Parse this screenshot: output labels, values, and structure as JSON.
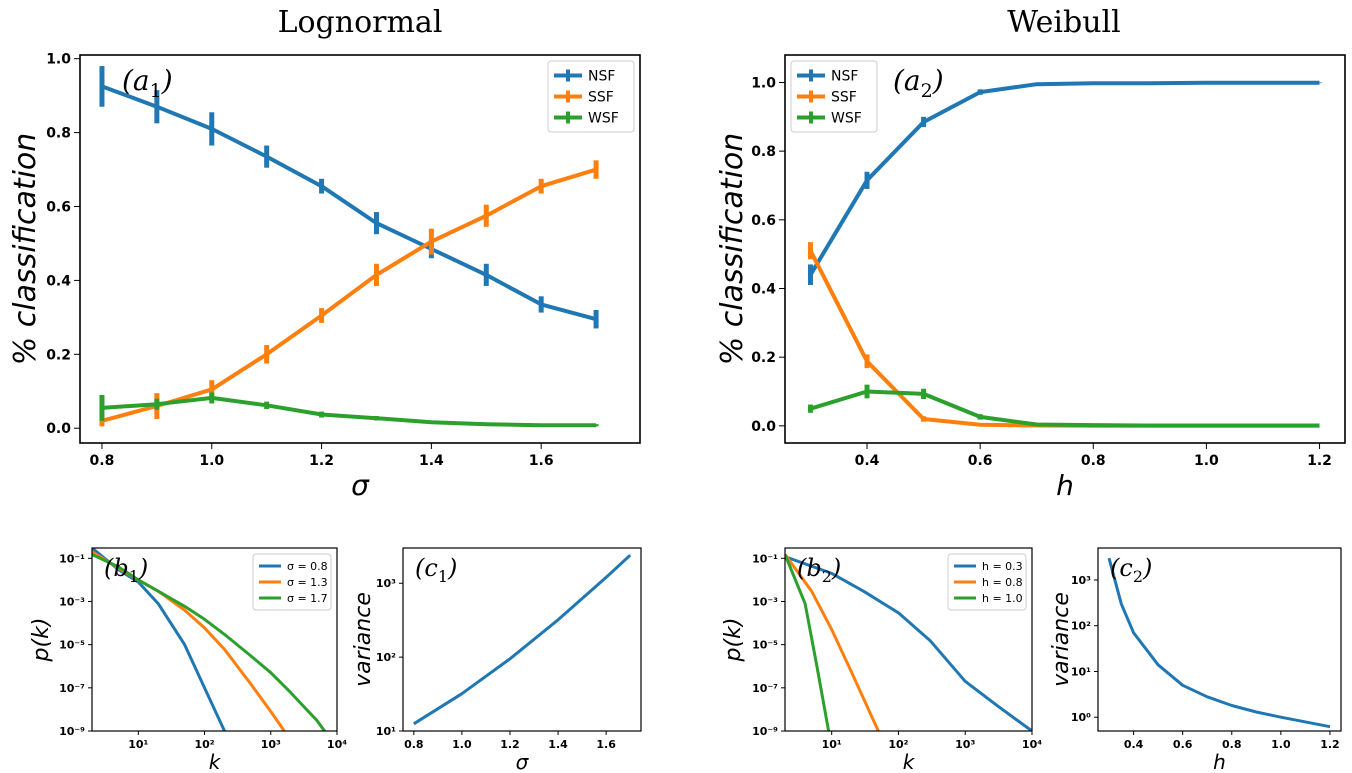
{
  "colors": {
    "blue": "#1f77b4",
    "orange": "#ff7f0e",
    "green": "#2ca02c"
  },
  "titles": {
    "left": "Lognormal",
    "right": "Weibull"
  },
  "chart_data": [
    {
      "id": "a1",
      "type": "line",
      "panel_label": "(a1)",
      "xlabel": "σ",
      "ylabel": "% classification",
      "xlim": [
        0.76,
        1.78
      ],
      "ylim": [
        -0.04,
        1.01
      ],
      "xticks": [
        0.8,
        1.0,
        1.2,
        1.4,
        1.6
      ],
      "yticks": [
        0.0,
        0.2,
        0.4,
        0.6,
        0.8,
        1.0
      ],
      "legend": "top-right",
      "x": [
        0.8,
        0.9,
        1.0,
        1.1,
        1.2,
        1.3,
        1.4,
        1.5,
        1.6,
        1.7
      ],
      "series": [
        {
          "name": "NSF",
          "color": "blue",
          "values": [
            0.925,
            0.87,
            0.81,
            0.735,
            0.655,
            0.555,
            0.485,
            0.415,
            0.335,
            0.295
          ],
          "err": [
            0.055,
            0.045,
            0.045,
            0.03,
            0.02,
            0.03,
            0.025,
            0.03,
            0.022,
            0.025
          ]
        },
        {
          "name": "SSF",
          "color": "orange",
          "values": [
            0.02,
            0.06,
            0.105,
            0.2,
            0.305,
            0.415,
            0.505,
            0.575,
            0.655,
            0.7
          ],
          "err": [
            0.015,
            0.035,
            0.025,
            0.025,
            0.02,
            0.03,
            0.035,
            0.03,
            0.02,
            0.025
          ]
        },
        {
          "name": "WSF",
          "color": "green",
          "values": [
            0.055,
            0.065,
            0.082,
            0.062,
            0.037,
            0.027,
            0.016,
            0.011,
            0.008,
            0.008
          ],
          "err": [
            0.035,
            0.015,
            0.015,
            0.01,
            0.008,
            0.006,
            0.004,
            0.004,
            0.003,
            0.003
          ]
        }
      ]
    },
    {
      "id": "a2",
      "type": "line",
      "panel_label": "(a2)",
      "xlabel": "h",
      "ylabel": "% classification",
      "xlim": [
        0.255,
        1.245
      ],
      "ylim": [
        -0.05,
        1.08
      ],
      "xticks": [
        0.4,
        0.6,
        0.8,
        1.0,
        1.2
      ],
      "yticks": [
        0.0,
        0.2,
        0.4,
        0.6,
        0.8,
        1.0
      ],
      "legend": "top-left",
      "x": [
        0.3,
        0.4,
        0.5,
        0.6,
        0.7,
        0.8,
        0.9,
        1.0,
        1.1,
        1.2
      ],
      "series": [
        {
          "name": "NSF",
          "color": "blue",
          "values": [
            0.44,
            0.715,
            0.885,
            0.972,
            0.995,
            0.998,
            0.998,
            0.999,
            0.999,
            0.999
          ],
          "err": [
            0.03,
            0.025,
            0.015,
            0.008,
            0.003,
            0.002,
            0.002,
            0.001,
            0.001,
            0.001
          ]
        },
        {
          "name": "SSF",
          "color": "orange",
          "values": [
            0.51,
            0.188,
            0.02,
            0.003,
            0.001,
            0.0,
            0.0,
            0.0,
            0.0,
            0.0
          ],
          "err": [
            0.025,
            0.02,
            0.008,
            0.002,
            0.001,
            0.0,
            0.0,
            0.0,
            0.0,
            0.0
          ]
        },
        {
          "name": "WSF",
          "color": "green",
          "values": [
            0.05,
            0.1,
            0.093,
            0.026,
            0.004,
            0.002,
            0.001,
            0.001,
            0.001,
            0.001
          ],
          "err": [
            0.012,
            0.02,
            0.015,
            0.008,
            0.003,
            0.001,
            0.0,
            0.0,
            0.0,
            0.0
          ]
        }
      ]
    },
    {
      "id": "b1",
      "type": "line",
      "panel_label": "(b1)",
      "xlabel": "k",
      "ylabel": "p(k)",
      "xscale": "log",
      "yscale": "log",
      "xlim": [
        2,
        10000
      ],
      "ylim": [
        1e-09,
        0.3
      ],
      "xticks": [
        10,
        100,
        1000,
        10000
      ],
      "xticklabels": [
        "10¹",
        "10²",
        "10³",
        "10⁴"
      ],
      "yticks": [
        1e-09,
        1e-07,
        1e-05,
        0.001,
        0.1
      ],
      "yticklabels": [
        "10⁻⁹",
        "10⁻⁷",
        "10⁻⁵",
        "10⁻³",
        "10⁻¹"
      ],
      "legend": "top-right",
      "series": [
        {
          "name": "σ = 0.8",
          "color": "blue",
          "x": [
            2,
            5,
            10,
            20,
            50,
            100,
            200
          ],
          "values": [
            0.3,
            0.03,
            0.008,
            0.0008,
            1e-05,
            1e-07,
            1e-09
          ]
        },
        {
          "name": "σ = 1.3",
          "color": "orange",
          "x": [
            2,
            5,
            10,
            20,
            50,
            100,
            200,
            500,
            1000,
            1600
          ],
          "values": [
            0.2,
            0.035,
            0.01,
            0.003,
            0.0004,
            6e-05,
            6e-06,
            1.5e-07,
            8e-09,
            1e-09
          ]
        },
        {
          "name": "σ = 1.7",
          "color": "green",
          "x": [
            2,
            5,
            10,
            20,
            50,
            100,
            200,
            500,
            1000,
            2000,
            5000,
            6500
          ],
          "values": [
            0.15,
            0.04,
            0.01,
            0.003,
            0.0006,
            0.00015,
            3e-05,
            3e-06,
            5e-07,
            6e-08,
            3e-09,
            1e-09
          ]
        }
      ]
    },
    {
      "id": "c1",
      "type": "line",
      "panel_label": "(c1)",
      "xlabel": "σ",
      "ylabel": "variance",
      "yscale": "log",
      "xlim": [
        0.755,
        1.745
      ],
      "ylim": [
        10,
        3000
      ],
      "xticks": [
        0.8,
        1.0,
        1.2,
        1.4,
        1.6
      ],
      "yticks": [
        10,
        100,
        1000
      ],
      "yticklabels": [
        "10¹",
        "10²",
        "10³"
      ],
      "series": [
        {
          "name": "",
          "color": "blue",
          "x": [
            0.8,
            1.0,
            1.2,
            1.4,
            1.6,
            1.7
          ],
          "values": [
            12.5,
            32,
            95,
            320,
            1200,
            2400
          ]
        }
      ]
    },
    {
      "id": "b2",
      "type": "line",
      "panel_label": "(b2)",
      "xlabel": "k",
      "ylabel": "p(k)",
      "xscale": "log",
      "yscale": "log",
      "xlim": [
        2,
        10000
      ],
      "ylim": [
        1e-09,
        0.3
      ],
      "xticks": [
        10,
        100,
        1000,
        10000
      ],
      "xticklabels": [
        "10¹",
        "10²",
        "10³",
        "10⁴"
      ],
      "yticks": [
        1e-09,
        1e-07,
        1e-05,
        0.001,
        0.1
      ],
      "yticklabels": [
        "10⁻⁹",
        "10⁻⁷",
        "10⁻⁵",
        "10⁻³",
        "10⁻¹"
      ],
      "legend": "top-right",
      "series": [
        {
          "name": "h = 0.3",
          "color": "blue",
          "x": [
            2,
            10,
            30,
            100,
            300,
            1000,
            3000,
            10000
          ],
          "values": [
            0.12,
            0.02,
            0.003,
            0.0003,
            1.5e-05,
            2e-07,
            1.5e-08,
            1e-09
          ]
        },
        {
          "name": "h = 0.8",
          "color": "orange",
          "x": [
            2,
            5,
            10,
            20,
            50
          ],
          "values": [
            0.15,
            0.003,
            5e-05,
            5e-07,
            1e-09
          ]
        },
        {
          "name": "h = 1.0",
          "color": "green",
          "x": [
            2,
            4,
            6,
            9
          ],
          "values": [
            0.15,
            0.0008,
            1e-06,
            1e-09
          ]
        }
      ]
    },
    {
      "id": "c2",
      "type": "line",
      "panel_label": "(c2)",
      "xlabel": "h",
      "ylabel": "variance",
      "yscale": "log",
      "xlim": [
        0.255,
        1.245
      ],
      "ylim": [
        0.5,
        5000
      ],
      "xticks": [
        0.4,
        0.6,
        0.8,
        1.0,
        1.2
      ],
      "yticks": [
        1,
        10,
        100,
        1000
      ],
      "yticklabels": [
        "10⁰",
        "10¹",
        "10²",
        "10³"
      ],
      "series": [
        {
          "name": "",
          "color": "blue",
          "x": [
            0.3,
            0.35,
            0.4,
            0.5,
            0.6,
            0.7,
            0.8,
            0.9,
            1.0,
            1.2
          ],
          "values": [
            3000,
            300,
            70,
            14,
            5,
            2.8,
            1.8,
            1.3,
            1.0,
            0.62
          ]
        }
      ]
    }
  ]
}
